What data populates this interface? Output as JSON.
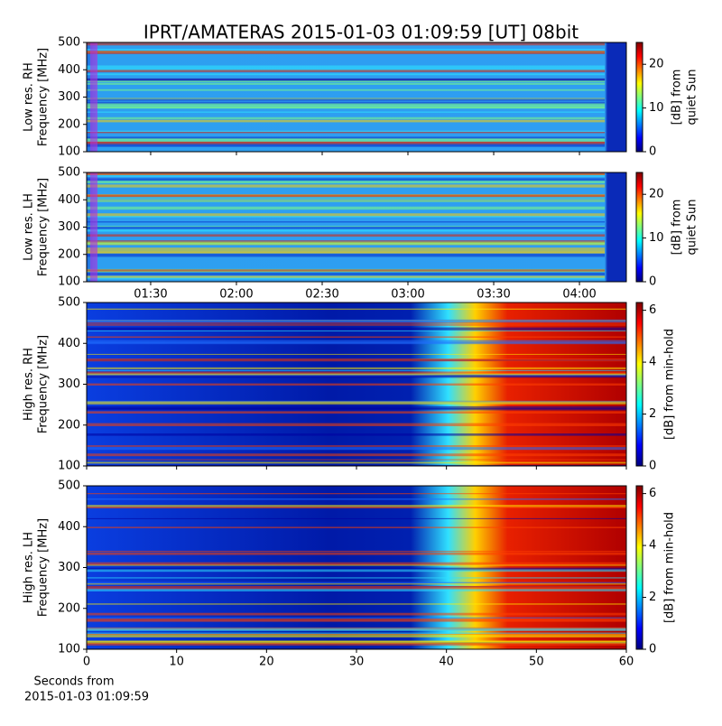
{
  "title": "IPRT/AMATERAS 2015-01-03 01:09:59 [UT]   08bit",
  "chart_data": [
    {
      "type": "heatmap",
      "style": "lowres",
      "ylabel": [
        "Low res. RH",
        "Frequency [MHz]"
      ],
      "ylim": [
        100,
        500
      ],
      "yticks": [
        100,
        200,
        300,
        400,
        500
      ],
      "xlim": [
        67.6,
        256.4
      ],
      "xticks": [
        90,
        120,
        150,
        180,
        210,
        240
      ],
      "xticklabels": false,
      "clim": [
        0,
        25
      ],
      "cticks": [
        0,
        10,
        20
      ],
      "clabel": [
        "[dB] from",
        "quiet Sun"
      ],
      "colormap": "jet"
    },
    {
      "type": "heatmap",
      "style": "lowres",
      "ylabel": [
        "Low res. LH",
        "Frequency [MHz]"
      ],
      "ylim": [
        100,
        500
      ],
      "yticks": [
        100,
        200,
        300,
        400,
        500
      ],
      "xlim": [
        67.6,
        256.4
      ],
      "xticks": [
        {
          "value": 90,
          "label": "01:30"
        },
        {
          "value": 120,
          "label": "02:00"
        },
        {
          "value": 150,
          "label": "02:30"
        },
        {
          "value": 180,
          "label": "03:00"
        },
        {
          "value": 210,
          "label": "03:30"
        },
        {
          "value": 240,
          "label": "04:00"
        }
      ],
      "clim": [
        0,
        25
      ],
      "cticks": [
        0,
        10,
        20
      ],
      "clabel": [
        "[dB] from",
        "quiet Sun"
      ],
      "colormap": "jet"
    },
    {
      "type": "heatmap",
      "style": "highres",
      "ylabel": [
        "High res. RH",
        "Frequency [MHz]"
      ],
      "ylim": [
        100,
        500
      ],
      "yticks": [
        100,
        200,
        300,
        400,
        500
      ],
      "xlim": [
        0,
        60
      ],
      "xticks": [
        0,
        10,
        20,
        30,
        40,
        50,
        60
      ],
      "xticklabels": false,
      "clim": [
        0,
        6.3
      ],
      "cticks": [
        0,
        2,
        4,
        6
      ],
      "clabel": [
        "[dB] from min-hold"
      ],
      "colormap": "jet"
    },
    {
      "type": "heatmap",
      "style": "highres",
      "ylabel": [
        "High res. LH",
        "Frequency [MHz]"
      ],
      "ylim": [
        100,
        500
      ],
      "yticks": [
        100,
        200,
        300,
        400,
        500
      ],
      "xlim": [
        0,
        60
      ],
      "xticks": [
        0,
        10,
        20,
        30,
        40,
        50,
        60
      ],
      "xlabel": [
        "Seconds from",
        "2015-01-03 01:09:59"
      ],
      "clim": [
        0,
        6.3
      ],
      "cticks": [
        0,
        2,
        4,
        6
      ],
      "clabel": [
        "[dB] from min-hold"
      ],
      "colormap": "jet"
    }
  ]
}
